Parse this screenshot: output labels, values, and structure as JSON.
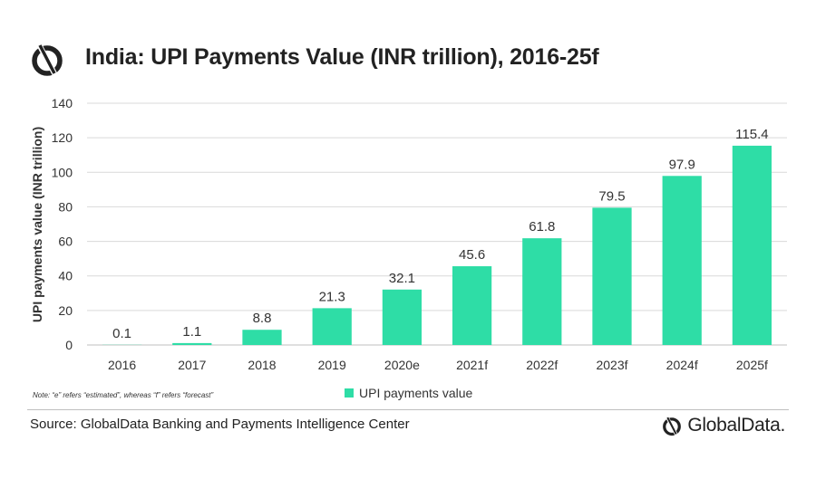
{
  "header": {
    "title": "India: UPI Payments Value (INR trillion), 2016-25f"
  },
  "chart_data": {
    "type": "bar",
    "categories": [
      "2016",
      "2017",
      "2018",
      "2019",
      "2020e",
      "2021f",
      "2022f",
      "2023f",
      "2024f",
      "2025f"
    ],
    "series": [
      {
        "name": "UPI payments value",
        "values": [
          0.1,
          1.1,
          8.8,
          21.3,
          32.1,
          45.6,
          61.8,
          79.5,
          97.9,
          115.4
        ]
      }
    ],
    "data_labels": [
      "0.1",
      "1.1",
      "8.8",
      "21.3",
      "32.1",
      "45.6",
      "61.8",
      "79.5",
      "97.9",
      "115.4"
    ],
    "ylabel": "UPI payments value (INR trillion)",
    "xlabel": "",
    "ylim": [
      0,
      140
    ],
    "yticks": [
      "0",
      "20",
      "40",
      "60",
      "80",
      "100",
      "120",
      "140"
    ],
    "grid": true,
    "legend_position": "bottom",
    "colors": {
      "bar": "#2EDDA6",
      "grid": "#d9d9d9"
    }
  },
  "footer": {
    "note": "Note: “e” refers “estimated”,  whereas “f” refers “forecast”",
    "source": "Source: GlobalData Banking and Payments Intelligence Center",
    "brand": "GlobalData."
  },
  "icons": {
    "logo": "globaldata-logo-icon"
  }
}
